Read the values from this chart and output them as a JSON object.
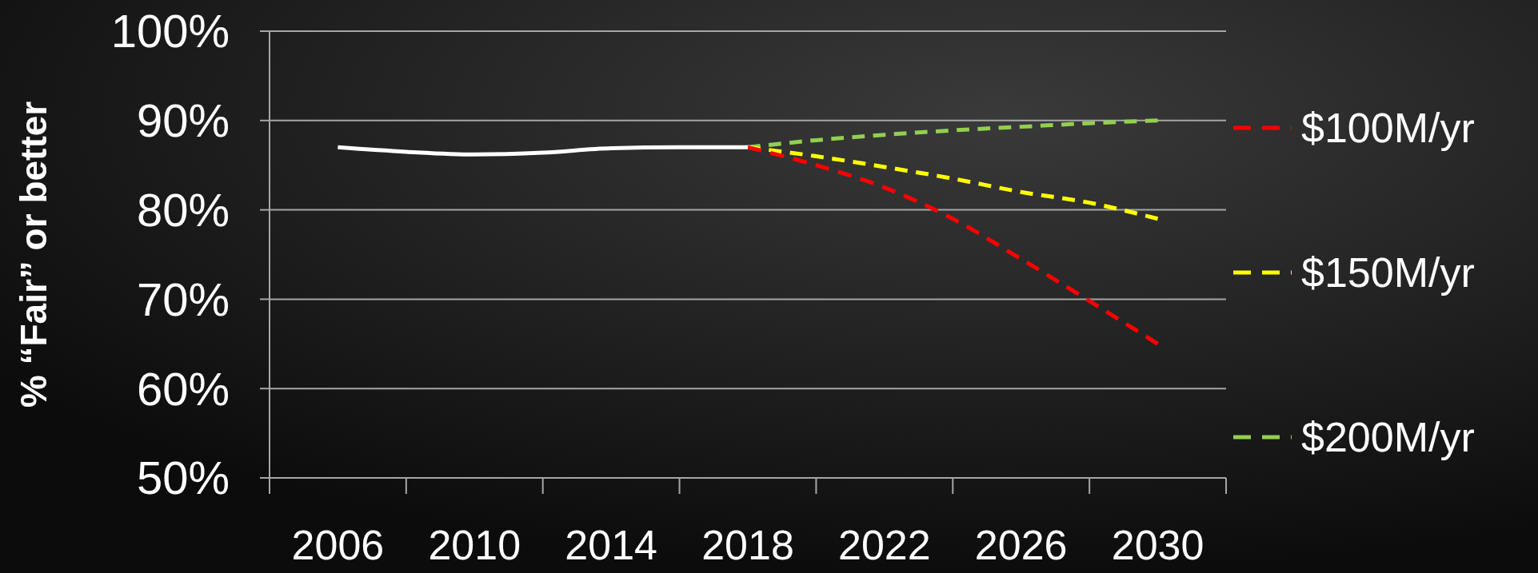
{
  "chart_data": {
    "type": "line",
    "ylabel": "% “Fair” or better",
    "categories": [
      "2006",
      null,
      "2010",
      null,
      "2014",
      null,
      "2018",
      null,
      "2022",
      null,
      "2026",
      null,
      "2030"
    ],
    "ylim": [
      50,
      100
    ],
    "yticks": [
      {
        "value": 50,
        "label": "50%"
      },
      {
        "value": 60,
        "label": "60%"
      },
      {
        "value": 70,
        "label": "70%"
      },
      {
        "value": 80,
        "label": "80%"
      },
      {
        "value": 90,
        "label": "90%"
      },
      {
        "value": 100,
        "label": "100%"
      }
    ],
    "grid": "y",
    "legend": "right",
    "marker": "none",
    "series": [
      {
        "color": "#ffffff",
        "line_style": "solid",
        "values": [
          87,
          86.5,
          86.2,
          86.4,
          86.9,
          87,
          87,
          null,
          null,
          null,
          null,
          null,
          null
        ]
      },
      {
        "name": "$100M/yr",
        "color": "#ff0000",
        "line_style": "dashed",
        "values": [
          null,
          null,
          null,
          null,
          null,
          null,
          87,
          85,
          82.5,
          79,
          74.5,
          69.8,
          65
        ]
      },
      {
        "name": "$150M/yr",
        "color": "#ffff00",
        "line_style": "dashed",
        "values": [
          null,
          null,
          null,
          null,
          null,
          null,
          87,
          86,
          84.8,
          83.5,
          82,
          80.8,
          79
        ]
      },
      {
        "name": "$200M/yr",
        "color": "#92d050",
        "line_style": "dashed",
        "values": [
          null,
          null,
          null,
          null,
          null,
          null,
          87,
          87.8,
          88.4,
          88.9,
          89.3,
          89.7,
          90
        ]
      }
    ]
  }
}
